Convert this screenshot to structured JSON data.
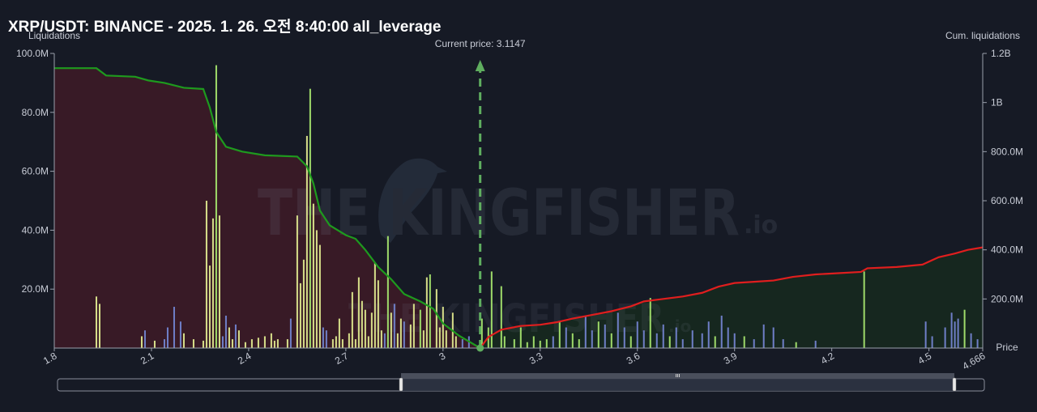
{
  "title": "XRP/USDT: BINANCE - 2025. 1. 26. 오전 8:40:00 all_leverage",
  "current_price_label": "Current price: 3.1147",
  "watermark": {
    "brand": "THE KINGFISHER",
    "suffix": ".io"
  },
  "colors": {
    "background": "#161a25",
    "long_cum_line": "#1e9a1e",
    "short_cum_line": "#e01e1e",
    "long_area": "#3a1a26",
    "short_area": "#16281f",
    "bar_yellow": "#d8e08a",
    "bar_green": "#9fdc6a",
    "bar_blue": "#6f7fc8",
    "current_price_marker": "#5fae5f"
  },
  "chart_data": {
    "type": "bar+line",
    "xlabel": "Price",
    "ylabel": "Liquidations",
    "y2label": "Cum. liquidations",
    "xlim": [
      1.8,
      4.666
    ],
    "xticks": [
      "1.8",
      "2.1",
      "2.4",
      "2.7",
      "3",
      "3.3",
      "3.6",
      "3.9",
      "4.2",
      "4.5",
      "4.666"
    ],
    "xtick_values": [
      1.8,
      2.1,
      2.4,
      2.7,
      3.0,
      3.3,
      3.6,
      3.9,
      4.2,
      4.5,
      4.666
    ],
    "ylim": [
      0,
      100000000
    ],
    "yticks": [
      "20.0M",
      "40.0M",
      "60.0M",
      "80.0M",
      "100.0M"
    ],
    "ytick_values": [
      20000000,
      40000000,
      60000000,
      80000000,
      100000000
    ],
    "y2lim": [
      0,
      1200000000
    ],
    "y2ticks": [
      "200.0M",
      "400.0M",
      "600.0M",
      "800.0M",
      "1B",
      "1.2B"
    ],
    "y2tick_values": [
      200000000,
      400000000,
      600000000,
      800000000,
      1000000000,
      1200000000
    ],
    "current_price": 3.1147,
    "bars": [
      {
        "x": 1.93,
        "y": 17500000,
        "c": "yellow"
      },
      {
        "x": 1.94,
        "y": 15000000,
        "c": "yellow"
      },
      {
        "x": 2.07,
        "y": 4000000,
        "c": "yellow"
      },
      {
        "x": 2.08,
        "y": 6000000,
        "c": "blue"
      },
      {
        "x": 2.11,
        "y": 2500000,
        "c": "yellow"
      },
      {
        "x": 2.14,
        "y": 3000000,
        "c": "blue"
      },
      {
        "x": 2.15,
        "y": 7000000,
        "c": "blue"
      },
      {
        "x": 2.17,
        "y": 14000000,
        "c": "blue"
      },
      {
        "x": 2.19,
        "y": 9000000,
        "c": "blue"
      },
      {
        "x": 2.2,
        "y": 5000000,
        "c": "yellow"
      },
      {
        "x": 2.23,
        "y": 3000000,
        "c": "yellow"
      },
      {
        "x": 2.26,
        "y": 2500000,
        "c": "yellow"
      },
      {
        "x": 2.27,
        "y": 50000000,
        "c": "yellow"
      },
      {
        "x": 2.28,
        "y": 28000000,
        "c": "yellow"
      },
      {
        "x": 2.29,
        "y": 44000000,
        "c": "yellow"
      },
      {
        "x": 2.3,
        "y": 96000000,
        "c": "green"
      },
      {
        "x": 2.31,
        "y": 45000000,
        "c": "yellow"
      },
      {
        "x": 2.32,
        "y": 4000000,
        "c": "blue"
      },
      {
        "x": 2.33,
        "y": 11000000,
        "c": "blue"
      },
      {
        "x": 2.34,
        "y": 7000000,
        "c": "yellow"
      },
      {
        "x": 2.35,
        "y": 3000000,
        "c": "yellow"
      },
      {
        "x": 2.36,
        "y": 8000000,
        "c": "blue"
      },
      {
        "x": 2.37,
        "y": 6000000,
        "c": "yellow"
      },
      {
        "x": 2.39,
        "y": 2000000,
        "c": "yellow"
      },
      {
        "x": 2.41,
        "y": 3000000,
        "c": "yellow"
      },
      {
        "x": 2.43,
        "y": 3500000,
        "c": "yellow"
      },
      {
        "x": 2.45,
        "y": 4000000,
        "c": "yellow"
      },
      {
        "x": 2.47,
        "y": 5000000,
        "c": "yellow"
      },
      {
        "x": 2.48,
        "y": 2500000,
        "c": "yellow"
      },
      {
        "x": 2.49,
        "y": 3000000,
        "c": "yellow"
      },
      {
        "x": 2.52,
        "y": 3000000,
        "c": "yellow"
      },
      {
        "x": 2.53,
        "y": 10000000,
        "c": "blue"
      },
      {
        "x": 2.55,
        "y": 45000000,
        "c": "yellow"
      },
      {
        "x": 2.56,
        "y": 22000000,
        "c": "yellow"
      },
      {
        "x": 2.57,
        "y": 30000000,
        "c": "yellow"
      },
      {
        "x": 2.58,
        "y": 72000000,
        "c": "yellow"
      },
      {
        "x": 2.59,
        "y": 88000000,
        "c": "green"
      },
      {
        "x": 2.6,
        "y": 49000000,
        "c": "yellow"
      },
      {
        "x": 2.61,
        "y": 40000000,
        "c": "yellow"
      },
      {
        "x": 2.62,
        "y": 35000000,
        "c": "yellow"
      },
      {
        "x": 2.63,
        "y": 7000000,
        "c": "blue"
      },
      {
        "x": 2.64,
        "y": 6000000,
        "c": "blue"
      },
      {
        "x": 2.66,
        "y": 3000000,
        "c": "yellow"
      },
      {
        "x": 2.67,
        "y": 4000000,
        "c": "yellow"
      },
      {
        "x": 2.68,
        "y": 10000000,
        "c": "yellow"
      },
      {
        "x": 2.69,
        "y": 3000000,
        "c": "yellow"
      },
      {
        "x": 2.71,
        "y": 5000000,
        "c": "yellow"
      },
      {
        "x": 2.72,
        "y": 19000000,
        "c": "yellow"
      },
      {
        "x": 2.73,
        "y": 3000000,
        "c": "yellow"
      },
      {
        "x": 2.74,
        "y": 24000000,
        "c": "yellow"
      },
      {
        "x": 2.75,
        "y": 16000000,
        "c": "yellow"
      },
      {
        "x": 2.76,
        "y": 13000000,
        "c": "yellow"
      },
      {
        "x": 2.77,
        "y": 4000000,
        "c": "yellow"
      },
      {
        "x": 2.78,
        "y": 12000000,
        "c": "yellow"
      },
      {
        "x": 2.79,
        "y": 29000000,
        "c": "yellow"
      },
      {
        "x": 2.8,
        "y": 23000000,
        "c": "yellow"
      },
      {
        "x": 2.81,
        "y": 6000000,
        "c": "yellow"
      },
      {
        "x": 2.82,
        "y": 5000000,
        "c": "blue"
      },
      {
        "x": 2.83,
        "y": 38000000,
        "c": "green"
      },
      {
        "x": 2.84,
        "y": 12000000,
        "c": "yellow"
      },
      {
        "x": 2.85,
        "y": 15000000,
        "c": "blue"
      },
      {
        "x": 2.86,
        "y": 5000000,
        "c": "yellow"
      },
      {
        "x": 2.87,
        "y": 10000000,
        "c": "yellow"
      },
      {
        "x": 2.88,
        "y": 9000000,
        "c": "blue"
      },
      {
        "x": 2.9,
        "y": 8000000,
        "c": "yellow"
      },
      {
        "x": 2.91,
        "y": 15000000,
        "c": "yellow"
      },
      {
        "x": 2.93,
        "y": 13000000,
        "c": "green"
      },
      {
        "x": 2.94,
        "y": 6000000,
        "c": "yellow"
      },
      {
        "x": 2.95,
        "y": 24000000,
        "c": "yellow"
      },
      {
        "x": 2.96,
        "y": 25000000,
        "c": "green"
      },
      {
        "x": 2.98,
        "y": 20000000,
        "c": "yellow"
      },
      {
        "x": 2.99,
        "y": 7000000,
        "c": "yellow"
      },
      {
        "x": 3.0,
        "y": 14000000,
        "c": "yellow"
      },
      {
        "x": 3.01,
        "y": 6000000,
        "c": "yellow"
      },
      {
        "x": 3.03,
        "y": 12000000,
        "c": "yellow"
      },
      {
        "x": 3.04,
        "y": 4000000,
        "c": "yellow"
      },
      {
        "x": 3.06,
        "y": 3000000,
        "c": "blue"
      },
      {
        "x": 3.08,
        "y": 4000000,
        "c": "blue"
      },
      {
        "x": 3.12,
        "y": 10000000,
        "c": "green"
      },
      {
        "x": 3.14,
        "y": 7000000,
        "c": "green"
      },
      {
        "x": 3.15,
        "y": 26000000,
        "c": "green"
      },
      {
        "x": 3.18,
        "y": 21000000,
        "c": "green"
      },
      {
        "x": 3.19,
        "y": 4000000,
        "c": "green"
      },
      {
        "x": 3.22,
        "y": 3000000,
        "c": "green"
      },
      {
        "x": 3.24,
        "y": 7000000,
        "c": "green"
      },
      {
        "x": 3.26,
        "y": 2000000,
        "c": "green"
      },
      {
        "x": 3.28,
        "y": 4000000,
        "c": "green"
      },
      {
        "x": 3.3,
        "y": 2500000,
        "c": "green"
      },
      {
        "x": 3.32,
        "y": 3000000,
        "c": "green"
      },
      {
        "x": 3.34,
        "y": 4000000,
        "c": "blue"
      },
      {
        "x": 3.36,
        "y": 9000000,
        "c": "green"
      },
      {
        "x": 3.38,
        "y": 7000000,
        "c": "blue"
      },
      {
        "x": 3.4,
        "y": 5000000,
        "c": "green"
      },
      {
        "x": 3.42,
        "y": 3000000,
        "c": "green"
      },
      {
        "x": 3.44,
        "y": 11000000,
        "c": "blue"
      },
      {
        "x": 3.46,
        "y": 6000000,
        "c": "blue"
      },
      {
        "x": 3.48,
        "y": 9000000,
        "c": "green"
      },
      {
        "x": 3.5,
        "y": 8000000,
        "c": "blue"
      },
      {
        "x": 3.52,
        "y": 5000000,
        "c": "green"
      },
      {
        "x": 3.54,
        "y": 12000000,
        "c": "blue"
      },
      {
        "x": 3.56,
        "y": 7000000,
        "c": "blue"
      },
      {
        "x": 3.58,
        "y": 4000000,
        "c": "green"
      },
      {
        "x": 3.6,
        "y": 9000000,
        "c": "blue"
      },
      {
        "x": 3.62,
        "y": 6000000,
        "c": "blue"
      },
      {
        "x": 3.64,
        "y": 17000000,
        "c": "green"
      },
      {
        "x": 3.66,
        "y": 5000000,
        "c": "blue"
      },
      {
        "x": 3.68,
        "y": 8000000,
        "c": "blue"
      },
      {
        "x": 3.7,
        "y": 4000000,
        "c": "green"
      },
      {
        "x": 3.72,
        "y": 7000000,
        "c": "blue"
      },
      {
        "x": 3.74,
        "y": 3000000,
        "c": "blue"
      },
      {
        "x": 3.77,
        "y": 6000000,
        "c": "blue"
      },
      {
        "x": 3.8,
        "y": 5000000,
        "c": "blue"
      },
      {
        "x": 3.82,
        "y": 9000000,
        "c": "blue"
      },
      {
        "x": 3.84,
        "y": 4000000,
        "c": "green"
      },
      {
        "x": 3.86,
        "y": 11000000,
        "c": "blue"
      },
      {
        "x": 3.88,
        "y": 7000000,
        "c": "blue"
      },
      {
        "x": 3.9,
        "y": 5000000,
        "c": "blue"
      },
      {
        "x": 3.93,
        "y": 4000000,
        "c": "green"
      },
      {
        "x": 3.96,
        "y": 3000000,
        "c": "blue"
      },
      {
        "x": 3.99,
        "y": 8000000,
        "c": "blue"
      },
      {
        "x": 4.02,
        "y": 7000000,
        "c": "blue"
      },
      {
        "x": 4.05,
        "y": 3000000,
        "c": "blue"
      },
      {
        "x": 4.09,
        "y": 2000000,
        "c": "green"
      },
      {
        "x": 4.15,
        "y": 2500000,
        "c": "blue"
      },
      {
        "x": 4.3,
        "y": 26000000,
        "c": "green"
      },
      {
        "x": 4.49,
        "y": 9000000,
        "c": "blue"
      },
      {
        "x": 4.51,
        "y": 4000000,
        "c": "blue"
      },
      {
        "x": 4.55,
        "y": 7000000,
        "c": "blue"
      },
      {
        "x": 4.57,
        "y": 12000000,
        "c": "blue"
      },
      {
        "x": 4.58,
        "y": 9000000,
        "c": "blue"
      },
      {
        "x": 4.59,
        "y": 10000000,
        "c": "blue"
      },
      {
        "x": 4.61,
        "y": 13000000,
        "c": "green"
      },
      {
        "x": 4.63,
        "y": 5000000,
        "c": "blue"
      },
      {
        "x": 4.65,
        "y": 3000000,
        "c": "blue"
      }
    ],
    "long_cumulative": [
      [
        1.8,
        1140000000
      ],
      [
        1.93,
        1140000000
      ],
      [
        1.96,
        1110000000
      ],
      [
        2.05,
        1105000000
      ],
      [
        2.09,
        1090000000
      ],
      [
        2.14,
        1080000000
      ],
      [
        2.2,
        1060000000
      ],
      [
        2.26,
        1055000000
      ],
      [
        2.28,
        980000000
      ],
      [
        2.3,
        880000000
      ],
      [
        2.33,
        820000000
      ],
      [
        2.38,
        800000000
      ],
      [
        2.45,
        785000000
      ],
      [
        2.55,
        780000000
      ],
      [
        2.58,
        740000000
      ],
      [
        2.6,
        670000000
      ],
      [
        2.62,
        560000000
      ],
      [
        2.65,
        500000000
      ],
      [
        2.7,
        460000000
      ],
      [
        2.73,
        445000000
      ],
      [
        2.76,
        400000000
      ],
      [
        2.8,
        330000000
      ],
      [
        2.84,
        280000000
      ],
      [
        2.88,
        220000000
      ],
      [
        2.93,
        190000000
      ],
      [
        2.97,
        160000000
      ],
      [
        3.0,
        100000000
      ],
      [
        3.05,
        50000000
      ],
      [
        3.1147,
        0
      ]
    ],
    "short_cumulative": [
      [
        3.1147,
        0
      ],
      [
        3.14,
        45000000
      ],
      [
        3.18,
        75000000
      ],
      [
        3.24,
        90000000
      ],
      [
        3.3,
        95000000
      ],
      [
        3.35,
        105000000
      ],
      [
        3.4,
        120000000
      ],
      [
        3.46,
        135000000
      ],
      [
        3.52,
        150000000
      ],
      [
        3.58,
        170000000
      ],
      [
        3.62,
        190000000
      ],
      [
        3.68,
        200000000
      ],
      [
        3.74,
        210000000
      ],
      [
        3.8,
        225000000
      ],
      [
        3.85,
        250000000
      ],
      [
        3.9,
        265000000
      ],
      [
        3.96,
        270000000
      ],
      [
        4.02,
        275000000
      ],
      [
        4.08,
        290000000
      ],
      [
        4.15,
        300000000
      ],
      [
        4.22,
        305000000
      ],
      [
        4.29,
        310000000
      ],
      [
        4.31,
        325000000
      ],
      [
        4.4,
        330000000
      ],
      [
        4.48,
        340000000
      ],
      [
        4.53,
        370000000
      ],
      [
        4.58,
        385000000
      ],
      [
        4.62,
        400000000
      ],
      [
        4.666,
        410000000
      ]
    ]
  }
}
